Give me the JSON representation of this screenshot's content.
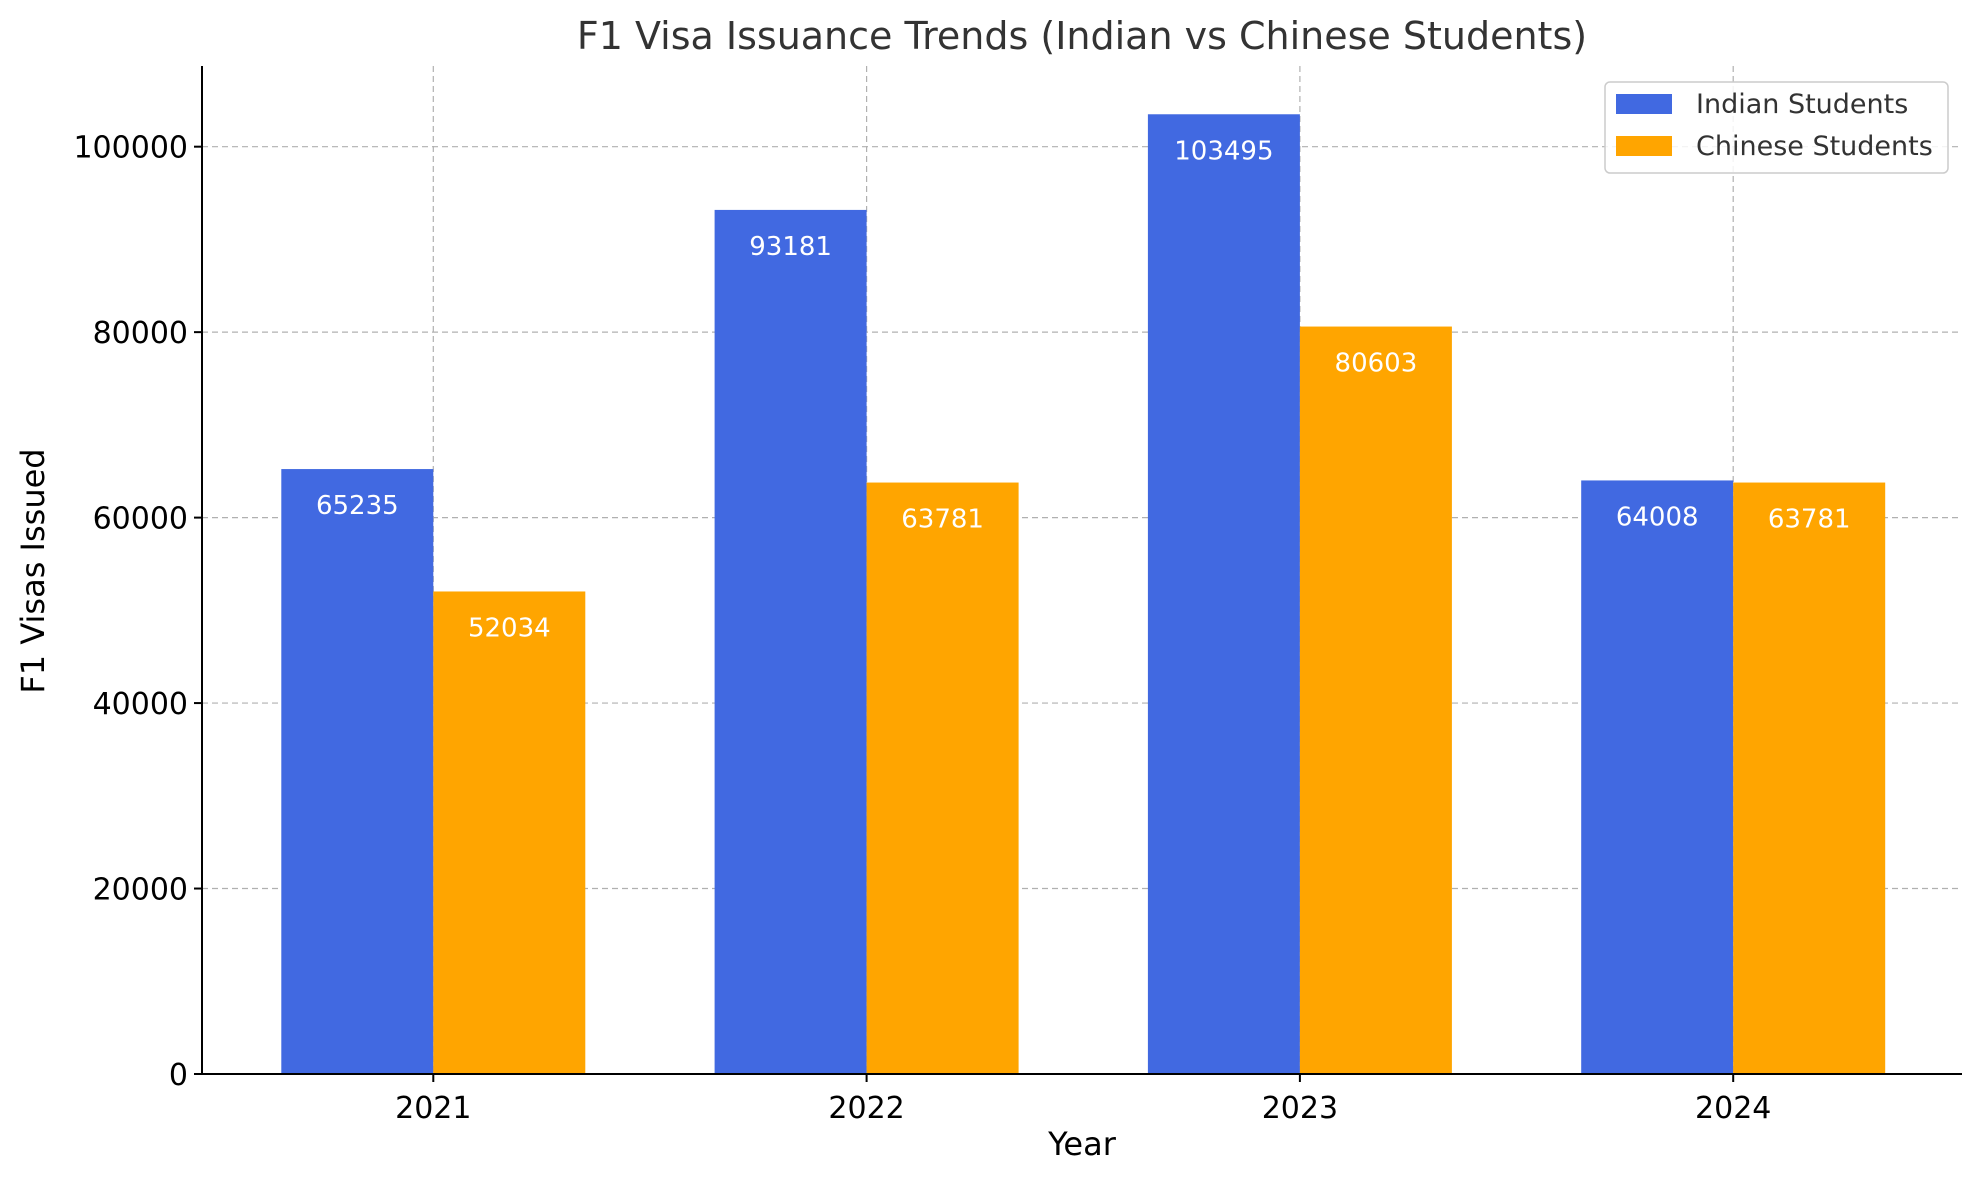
{
  "chart_data": {
    "type": "bar",
    "title": "F1 Visa Issuance Trends (Indian vs Chinese Students)",
    "xlabel": "Year",
    "ylabel": "F1 Visas Issued",
    "categories": [
      "2021",
      "2022",
      "2023",
      "2024"
    ],
    "series": [
      {
        "name": "Indian Students",
        "color": "#4169e1",
        "values": [
          65235,
          93181,
          103495,
          64008
        ]
      },
      {
        "name": "Chinese Students",
        "color": "#ffa500",
        "values": [
          52034,
          63781,
          80603,
          63781
        ]
      }
    ],
    "ylim": [
      0,
      108700
    ],
    "yticks": [
      0,
      20000,
      40000,
      60000,
      80000,
      100000
    ],
    "grid": true,
    "legend_position": "top-right"
  }
}
